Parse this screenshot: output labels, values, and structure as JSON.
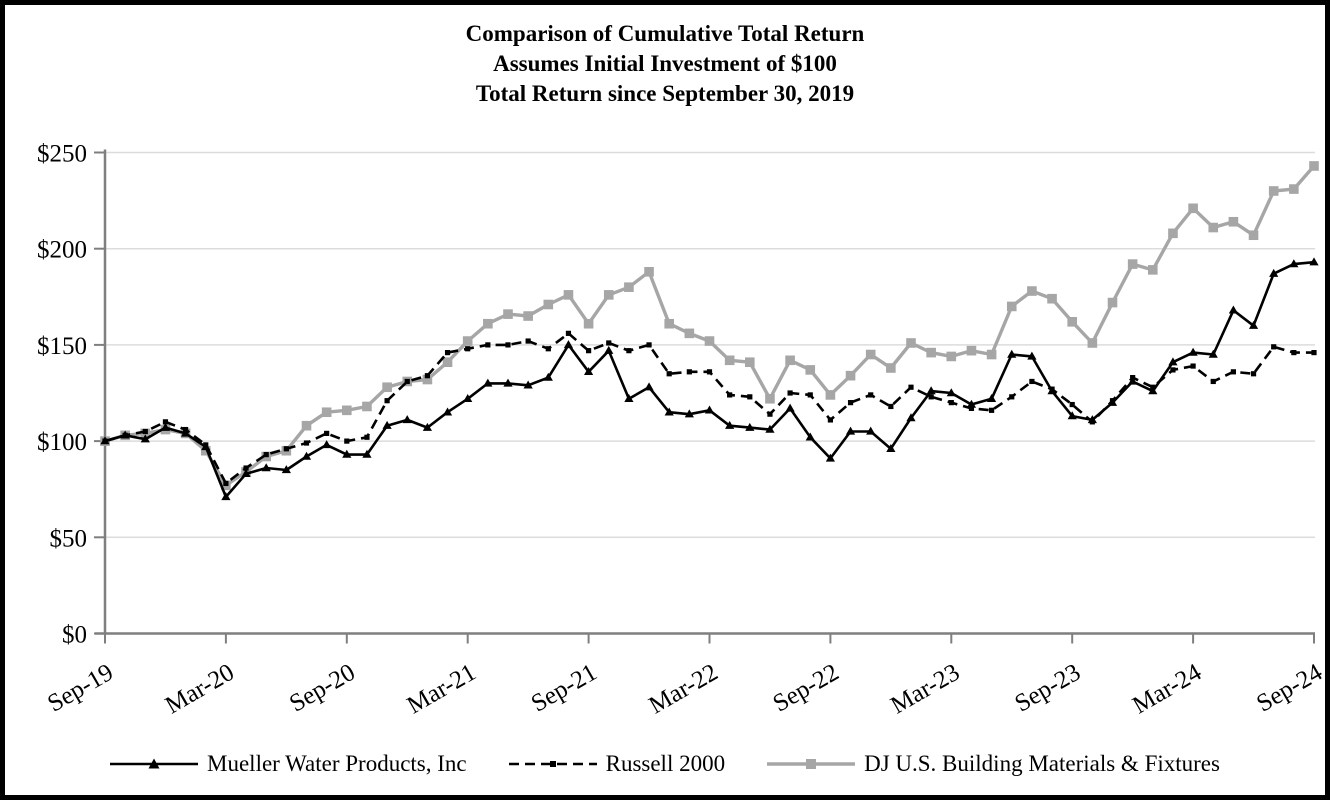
{
  "title": {
    "line1": "Comparison of Cumulative Total Return",
    "line2": "Assumes Initial Investment of $100",
    "line3": "Total Return since September 30, 2019"
  },
  "legend": {
    "mueller_label": "Mueller Water Products, Inc",
    "russell_label": "Russell 2000",
    "dj_label": "DJ U.S. Building Materials & Fixtures"
  },
  "colors": {
    "mueller": "#000000",
    "russell": "#000000",
    "dj": "#a6a6a6",
    "gridline": "#dcdcdc",
    "axis": "#7f7f7f"
  },
  "chart_data": {
    "type": "line",
    "title": "Comparison of Cumulative Total Return",
    "subtitle1": "Assumes Initial Investment of $100",
    "subtitle2": "Total Return since September 30, 2019",
    "ylim": [
      0,
      250
    ],
    "y_tick_labels": [
      "$0",
      "$50",
      "$100",
      "$150",
      "$200",
      "$250"
    ],
    "y_tick_values": [
      0,
      50,
      100,
      150,
      200,
      250
    ],
    "x_tick_labels": [
      "Sep-19",
      "Mar-20",
      "Sep-20",
      "Mar-21",
      "Sep-21",
      "Mar-22",
      "Sep-22",
      "Mar-23",
      "Sep-23",
      "Mar-24",
      "Sep-24"
    ],
    "x_tick_indices": [
      0,
      6,
      12,
      18,
      24,
      30,
      36,
      42,
      48,
      54,
      60
    ],
    "grid": "horizontal",
    "legend_position": "bottom",
    "categories": [
      "Sep-19",
      "Oct-19",
      "Nov-19",
      "Dec-19",
      "Jan-20",
      "Feb-20",
      "Mar-20",
      "Apr-20",
      "May-20",
      "Jun-20",
      "Jul-20",
      "Aug-20",
      "Sep-20",
      "Oct-20",
      "Nov-20",
      "Dec-20",
      "Jan-21",
      "Feb-21",
      "Mar-21",
      "Apr-21",
      "May-21",
      "Jun-21",
      "Jul-21",
      "Aug-21",
      "Sep-21",
      "Oct-21",
      "Nov-21",
      "Dec-21",
      "Jan-22",
      "Feb-22",
      "Mar-22",
      "Apr-22",
      "May-22",
      "Jun-22",
      "Jul-22",
      "Aug-22",
      "Sep-22",
      "Oct-22",
      "Nov-22",
      "Dec-22",
      "Jan-23",
      "Feb-23",
      "Mar-23",
      "Apr-23",
      "May-23",
      "Jun-23",
      "Jul-23",
      "Aug-23",
      "Sep-23",
      "Oct-23",
      "Nov-23",
      "Dec-23",
      "Jan-24",
      "Feb-24",
      "Mar-24",
      "Apr-24",
      "May-24",
      "Jun-24",
      "Jul-24",
      "Aug-24",
      "Sep-24"
    ],
    "series": [
      {
        "name": "Mueller Water Products, Inc",
        "marker": "triangle",
        "line_style": "solid",
        "color": "#000000",
        "values": [
          100,
          103,
          101,
          107,
          104,
          97,
          71,
          83,
          86,
          85,
          92,
          98,
          93,
          93,
          108,
          111,
          107,
          115,
          122,
          130,
          130,
          129,
          133,
          150,
          136,
          147,
          122,
          128,
          115,
          114,
          116,
          108,
          107,
          106,
          117,
          102,
          91,
          105,
          105,
          96,
          112,
          126,
          125,
          119,
          122,
          145,
          144,
          126,
          113,
          111,
          120,
          131,
          126,
          141,
          146,
          145,
          168,
          160,
          187,
          192,
          193
        ]
      },
      {
        "name": "Russell 2000",
        "marker": "square-small",
        "line_style": "dashed",
        "color": "#000000",
        "values": [
          100,
          103,
          105,
          110,
          106,
          98,
          78,
          86,
          93,
          96,
          99,
          104,
          100,
          102,
          121,
          131,
          134,
          146,
          148,
          150,
          150,
          152,
          148,
          156,
          147,
          151,
          147,
          150,
          135,
          136,
          136,
          124,
          123,
          114,
          125,
          124,
          111,
          120,
          124,
          118,
          128,
          123,
          120,
          117,
          116,
          123,
          131,
          127,
          119,
          110,
          121,
          133,
          128,
          137,
          139,
          131,
          136,
          135,
          149,
          146,
          146
        ]
      },
      {
        "name": "DJ U.S. Building Materials & Fixtures",
        "marker": "square",
        "line_style": "solid",
        "color": "#a6a6a6",
        "values": [
          100,
          103,
          104,
          106,
          104,
          95,
          77,
          84,
          92,
          95,
          108,
          115,
          116,
          118,
          128,
          131,
          132,
          141,
          152,
          161,
          166,
          165,
          171,
          176,
          161,
          176,
          180,
          188,
          161,
          156,
          152,
          142,
          141,
          122,
          142,
          137,
          124,
          134,
          145,
          138,
          151,
          146,
          144,
          147,
          145,
          170,
          178,
          174,
          162,
          151,
          172,
          192,
          189,
          208,
          221,
          211,
          214,
          207,
          230,
          231,
          243
        ]
      }
    ]
  }
}
